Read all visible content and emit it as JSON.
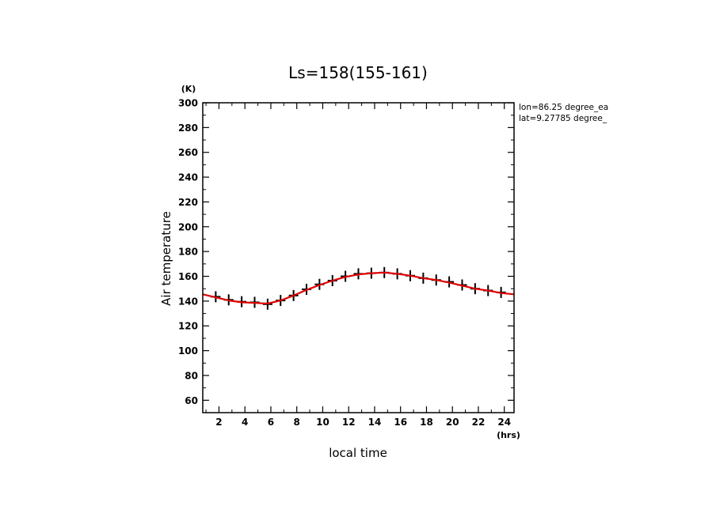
{
  "chart_data": {
    "type": "line",
    "title": "Ls=158(155-161)",
    "xlabel": "local time",
    "ylabel": "Air temperature",
    "x_unit": "(hrs)",
    "y_unit": "(K)",
    "xlim": [
      0.75,
      24.75
    ],
    "ylim": [
      50,
      300
    ],
    "x_ticks": [
      2,
      4,
      6,
      8,
      10,
      12,
      14,
      16,
      18,
      20,
      22,
      24
    ],
    "y_ticks": [
      60,
      80,
      100,
      120,
      140,
      160,
      180,
      200,
      220,
      240,
      260,
      280,
      300
    ],
    "grid": false,
    "annotations": [
      "lon=86.25 degree_ea",
      "lat=9.27785 degree_"
    ],
    "series": [
      {
        "style": "crosses",
        "color": "#000000",
        "x": [
          1.75,
          2.75,
          3.75,
          4.75,
          5.75,
          6.75,
          7.75,
          8.75,
          9.75,
          10.75,
          11.75,
          12.75,
          13.75,
          14.75,
          15.75,
          16.75,
          17.75,
          18.75,
          19.75,
          20.75,
          21.75,
          22.75,
          23.75
        ],
        "y": [
          143.5,
          141.0,
          139.5,
          139.0,
          137.5,
          140.5,
          144.5,
          149.5,
          153.5,
          156.5,
          160.0,
          162.0,
          162.5,
          163.0,
          162.0,
          160.5,
          158.5,
          157.0,
          155.5,
          153.0,
          150.0,
          148.5,
          147.0
        ]
      },
      {
        "style": "line",
        "color": "#e00000",
        "x": [
          0.75,
          1.75,
          2.75,
          3.75,
          4.75,
          5.75,
          6.75,
          7.75,
          8.75,
          9.75,
          10.75,
          11.75,
          12.75,
          13.75,
          14.75,
          15.75,
          16.75,
          17.75,
          18.75,
          19.75,
          20.75,
          21.75,
          22.75,
          23.75,
          24.75
        ],
        "y": [
          145.5,
          143.0,
          140.5,
          139.0,
          138.5,
          138.0,
          140.5,
          144.5,
          149.0,
          153.0,
          156.5,
          159.5,
          161.5,
          162.5,
          163.0,
          162.0,
          160.5,
          158.5,
          157.0,
          155.0,
          152.5,
          150.0,
          148.5,
          146.5,
          145.5
        ]
      }
    ]
  }
}
